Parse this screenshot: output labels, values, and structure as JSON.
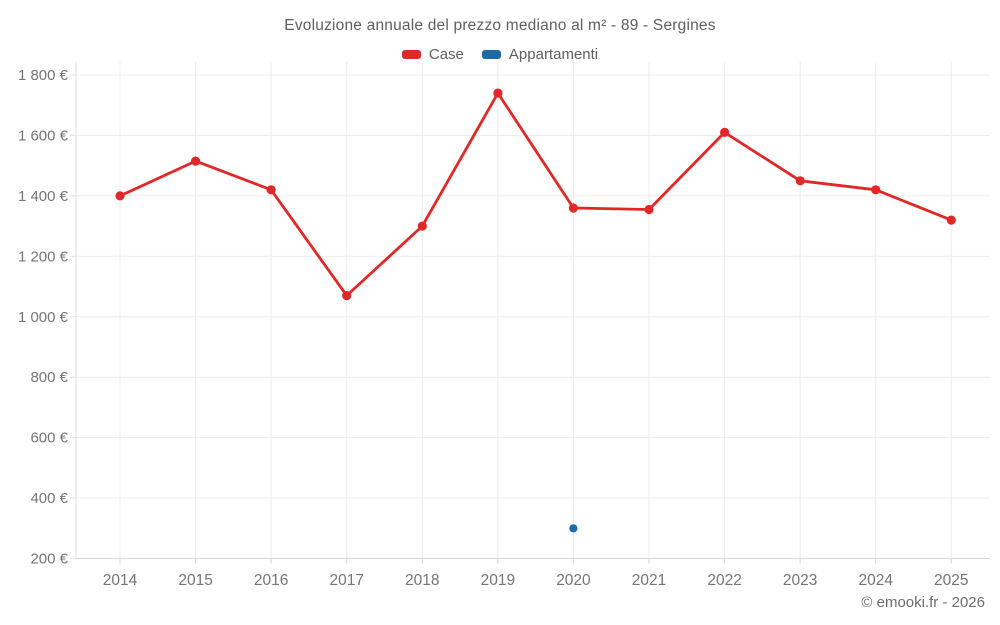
{
  "header": {
    "title": "Evoluzione annuale del prezzo mediano al m² - 89 - Sergines"
  },
  "footer": {
    "credit": "© emooki.fr - 2026"
  },
  "chart_data": {
    "type": "line",
    "title": "Evoluzione annuale del prezzo mediano al m² - 89 - Sergines",
    "categories": [
      "2014",
      "2015",
      "2016",
      "2017",
      "2018",
      "2019",
      "2020",
      "2021",
      "2022",
      "2023",
      "2024",
      "2025"
    ],
    "series": [
      {
        "name": "Case",
        "color": "#e02829",
        "values": [
          1400,
          1515,
          1420,
          1070,
          1300,
          1740,
          1360,
          1355,
          1610,
          1450,
          1420,
          1320
        ]
      },
      {
        "name": "Appartamenti",
        "color": "#1b6ca5",
        "values": [
          null,
          null,
          null,
          null,
          null,
          null,
          300,
          null,
          null,
          null,
          null,
          null
        ]
      }
    ],
    "xlabel": "",
    "ylabel": "",
    "ylim": [
      200,
      1800
    ],
    "y_tick_step": 200,
    "y_tick_labels": [
      "200 €",
      "400 €",
      "600 €",
      "800 €",
      "1 000 €",
      "1 200 €",
      "1 400 €",
      "1 600 €",
      "1 800 €"
    ],
    "grid": true,
    "legend_position": "top",
    "currency": "€"
  }
}
